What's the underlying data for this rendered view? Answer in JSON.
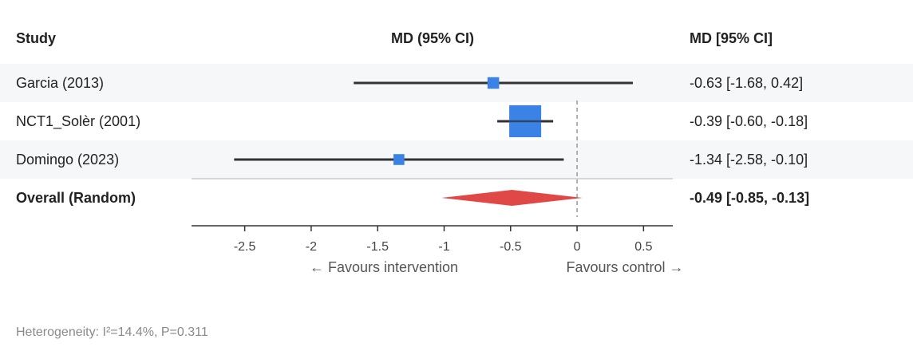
{
  "headers": {
    "study": "Study",
    "plot": "MD (95% CI)",
    "ci": "MD [95% CI]"
  },
  "chart_data": {
    "type": "forest",
    "measure": "MD",
    "studies": [
      {
        "name": "Garcia (2013)",
        "md": -0.63,
        "lower": -1.68,
        "upper": 0.42,
        "ci_text": "-0.63 [-1.68, 0.42]",
        "weight": 0.12
      },
      {
        "name": "NCT1_Solèr (2001)",
        "md": -0.39,
        "lower": -0.6,
        "upper": -0.18,
        "ci_text": "-0.39 [-0.60, -0.18]",
        "weight": 1.0
      },
      {
        "name": "Domingo (2023)",
        "md": -1.34,
        "lower": -2.58,
        "upper": -0.1,
        "ci_text": "-1.34 [-2.58, -0.10]",
        "weight": 0.09
      }
    ],
    "overall": {
      "name": "Overall (Random)",
      "md": -0.49,
      "lower": -0.85,
      "upper": -0.13,
      "ci_text": "-0.49 [-0.85, -0.13]"
    },
    "x_ticks": [
      -2.5,
      -2,
      -1.5,
      -1,
      -0.5,
      0,
      0.5
    ],
    "x_tick_labels": [
      "-2.5",
      "-2",
      "-1.5",
      "-1",
      "-0.5",
      "0",
      "0.5"
    ],
    "xlim": [
      -2.9,
      0.72
    ],
    "null_line": 0,
    "favours_left": "← Favours intervention",
    "favours_right": "Favours control →",
    "colors": {
      "study": "#3b82e6",
      "overall": "#e04848",
      "ci_line": "#333333",
      "null_line": "#999999",
      "row_alt": "#f6f7f9"
    }
  },
  "footnote": "Heterogeneity: I²=14.4%, P=0.311"
}
